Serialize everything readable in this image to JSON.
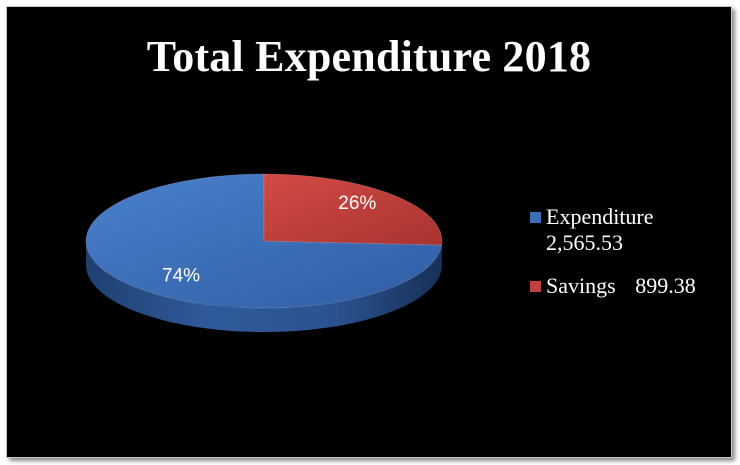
{
  "chart_data": {
    "type": "pie",
    "title": "Total Expenditure 2018",
    "series": [
      {
        "name": "Expenditure",
        "value_label": "2,565.53",
        "value": 2565.53,
        "percent_label": "74%",
        "color": "#3d6fb8"
      },
      {
        "name": "Savings",
        "value_label": "899.38",
        "value": 899.38,
        "percent_label": "26%",
        "color": "#c0403d"
      }
    ],
    "legend_position": "right",
    "style": "3d-pie",
    "background": "#000000"
  }
}
